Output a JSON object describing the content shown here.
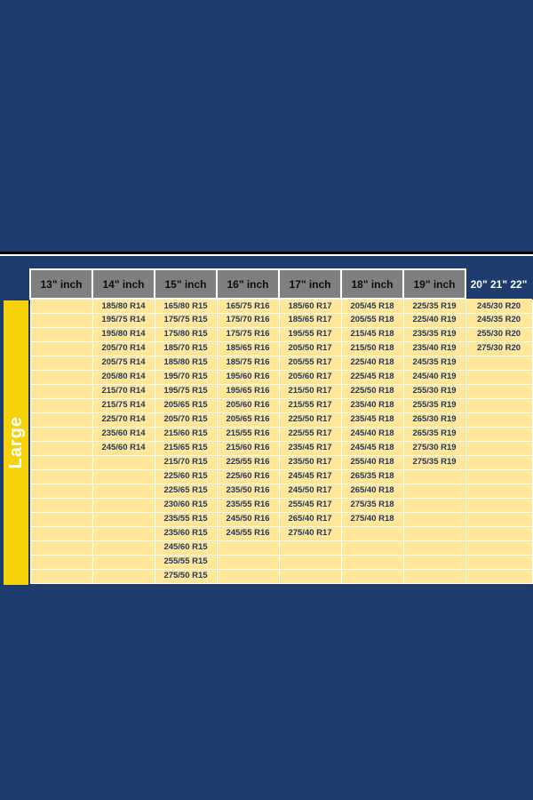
{
  "section_label": "Large",
  "chart_data": {
    "type": "table",
    "row_count": 20,
    "columns": [
      {
        "header": "13\" inch",
        "values": []
      },
      {
        "header": "14\" inch",
        "values": [
          "185/80 R14",
          "195/75 R14",
          "195/80 R14",
          "205/70 R14",
          "205/75 R14",
          "205/80 R14",
          "215/70 R14",
          "215/75 R14",
          "225/70 R14",
          "235/60 R14",
          "245/60 R14"
        ]
      },
      {
        "header": "15\" inch",
        "values": [
          "165/80 R15",
          "175/75 R15",
          "175/80 R15",
          "185/70 R15",
          "185/80 R15",
          "195/70 R15",
          "195/75 R15",
          "205/65 R15",
          "205/70 R15",
          "215/60 R15",
          "215/65 R15",
          "215/70 R15",
          "225/60 R15",
          "225/65 R15",
          "230/60 R15",
          "235/55 R15",
          "235/60 R15",
          "245/60 R15",
          "255/55 R15",
          "275/50 R15"
        ]
      },
      {
        "header": "16\" inch",
        "values": [
          "165/75 R16",
          "175/70 R16",
          "175/75 R16",
          "185/65 R16",
          "185/75 R16",
          "195/60 R16",
          "195/65 R16",
          "205/60 R16",
          "205/65 R16",
          "215/55 R16",
          "215/60 R16",
          "225/55 R16",
          "225/60 R16",
          "235/50 R16",
          "235/55 R16",
          "245/50 R16",
          "245/55 R16"
        ]
      },
      {
        "header": "17\" inch",
        "values": [
          "185/60 R17",
          "185/65 R17",
          "195/55 R17",
          "205/50 R17",
          "205/55 R17",
          "205/60 R17",
          "215/50 R17",
          "215/55 R17",
          "225/50 R17",
          "225/55 R17",
          "235/45 R17",
          "235/50 R17",
          "245/45 R17",
          "245/50 R17",
          "255/45 R17",
          "265/40 R17",
          "275/40 R17"
        ]
      },
      {
        "header": "18\" inch",
        "values": [
          "205/45 R18",
          "205/55 R18",
          "215/45 R18",
          "215/50 R18",
          "225/40 R18",
          "225/45 R18",
          "225/50 R18",
          "235/40 R18",
          "235/45 R18",
          "245/40 R18",
          "245/45 R18",
          "255/40 R18",
          "265/35 R18",
          "265/40 R18",
          "275/35 R18",
          "275/40 R18"
        ]
      },
      {
        "header": "19\" inch",
        "values": [
          "225/35 R19",
          "225/40 R19",
          "235/35 R19",
          "235/40 R19",
          "245/35 R19",
          "245/40 R19",
          "255/30 R19",
          "255/35 R19",
          "265/30 R19",
          "265/35 R19",
          "275/30 R19",
          "275/35 R19"
        ]
      },
      {
        "header": "20\" 21\" 22\"",
        "header_on_background": true,
        "values": [
          "245/30 R20",
          "245/35 R20",
          "255/30 R20",
          "275/30 R20"
        ]
      }
    ]
  },
  "colors": {
    "background_navy": "#1E3C6E",
    "divider_black": "#000000",
    "header_gray": "#7F7F7F",
    "cell_cream": "#FFE699",
    "cell_text_navy": "#1F3864",
    "large_bar_yellow": "#F7D10A",
    "grid_white": "#FFFFFF"
  }
}
